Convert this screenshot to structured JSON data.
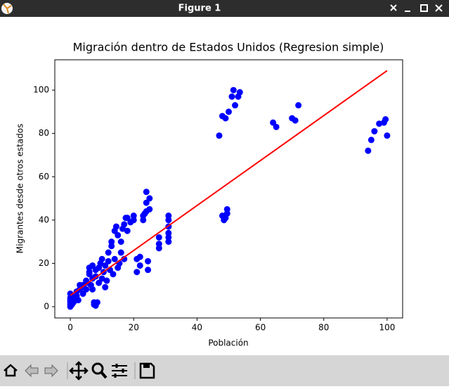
{
  "window": {
    "title": "Figure 1"
  },
  "chart_data": {
    "type": "scatter",
    "title": "Migración dentro de Estados Unidos (Regresion simple)",
    "x_label": "Población",
    "y_label": "Migrantes desde otros estados",
    "xlim": [
      -4.9,
      104.9
    ],
    "xticks": [
      0,
      20,
      40,
      60,
      80,
      100
    ],
    "ylim": [
      -5.2,
      114
    ],
    "yticks": [
      0,
      20,
      40,
      60,
      80,
      100
    ],
    "series": [
      {
        "type": "scatter",
        "color": "#0000ff",
        "x": [
          0,
          0,
          0,
          0,
          0,
          0,
          0.3,
          0.5,
          1,
          1,
          1.5,
          2,
          2,
          2.5,
          3,
          3,
          3.5,
          4,
          4,
          5,
          5,
          5,
          6,
          6,
          6,
          6.5,
          7,
          7,
          7,
          7.5,
          7.5,
          8,
          8,
          8,
          8.5,
          9,
          9,
          9.5,
          10,
          10,
          10.5,
          11,
          11,
          11.5,
          12,
          12,
          12.5,
          13,
          13,
          13.5,
          14,
          14,
          14.5,
          15,
          15,
          15.5,
          16,
          16,
          16.5,
          17,
          17,
          17.5,
          18,
          18,
          19,
          20,
          20,
          21,
          21,
          22,
          22,
          23,
          23,
          23.5,
          24,
          24,
          24,
          25,
          25,
          24.5,
          24.5,
          28,
          28,
          28,
          31,
          31,
          31,
          31,
          31,
          31,
          47,
          48,
          48,
          48.5,
          49,
          49,
          49.5,
          49.5,
          50,
          51,
          51.5,
          52,
          53,
          53.5,
          64,
          65,
          70,
          71,
          72,
          94,
          95,
          96,
          97.5,
          99,
          99.5,
          100
        ],
        "values": [
          0,
          1,
          2,
          3,
          4,
          6,
          5,
          1,
          2,
          3,
          4,
          5,
          7,
          3,
          8,
          10,
          9,
          6,
          10,
          8,
          11,
          12,
          15,
          16,
          18,
          10,
          19,
          8,
          13,
          1,
          2,
          0.5,
          14,
          17,
          2,
          11,
          18,
          20,
          13,
          22,
          16,
          9,
          19,
          12,
          21,
          25,
          17,
          28,
          30,
          15,
          22,
          35,
          37,
          18,
          33,
          20,
          25,
          30,
          36,
          22,
          38,
          41,
          35,
          41,
          39,
          40,
          42,
          16,
          22,
          19,
          23,
          40,
          42,
          43,
          44,
          48,
          53,
          45,
          50,
          17,
          21,
          27,
          29,
          32,
          30,
          32,
          34,
          37,
          40,
          42,
          79,
          42,
          88,
          40,
          41,
          87,
          45,
          43,
          90,
          97,
          100,
          93,
          97,
          99,
          85,
          83,
          87,
          86,
          93,
          72,
          77,
          81,
          84.5,
          85,
          86.5,
          79
        ]
      },
      {
        "type": "line",
        "color": "#ff0000",
        "x": [
          0,
          100
        ],
        "values": [
          5.2,
          109
        ]
      }
    ]
  }
}
